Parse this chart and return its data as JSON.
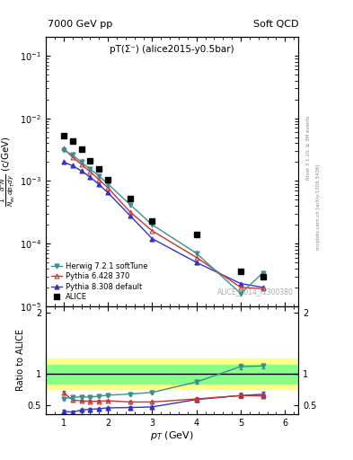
{
  "title_left": "7000 GeV pp",
  "title_right": "Soft QCD",
  "annotation": "pT(Σ⁻) (alice2015-y0.5bar)",
  "watermark": "ALICE_2014_I1300380",
  "ylabel_main_line1": "1    d²N  (c/GeV)",
  "ylabel_main_line2": "N_ev dp_Tdy",
  "ylabel_ratio": "Ratio to ALICE",
  "xlabel": "p_T (GeV)",
  "rivet_label": "Rivet 3.1.10, ≥ 3M events",
  "arxiv_label": "mcplots.cern.ch [arXiv:1306.3436]",
  "alice_x": [
    1.0,
    1.2,
    1.4,
    1.6,
    1.8,
    2.0,
    2.5,
    3.0,
    4.0,
    5.0,
    5.5
  ],
  "alice_y": [
    0.0052,
    0.0043,
    0.0032,
    0.0021,
    0.00155,
    0.00105,
    0.00052,
    0.00023,
    0.00014,
    3.6e-05,
    3e-05
  ],
  "herwig_x": [
    1.0,
    1.2,
    1.4,
    1.6,
    1.8,
    2.0,
    2.5,
    3.0,
    4.0,
    5.0,
    5.5
  ],
  "herwig_y": [
    0.0031,
    0.0026,
    0.002,
    0.00155,
    0.0012,
    0.0009,
    0.00042,
    0.0002,
    7e-05,
    1.6e-05,
    3.4e-05
  ],
  "pythia6_x": [
    1.0,
    1.2,
    1.4,
    1.6,
    1.8,
    2.0,
    2.5,
    3.0,
    4.0,
    5.0,
    5.5
  ],
  "pythia6_y": [
    0.0033,
    0.0024,
    0.00185,
    0.0014,
    0.00105,
    0.00078,
    0.00032,
    0.00016,
    6e-05,
    2e-05,
    1.9e-05
  ],
  "pythia8_x": [
    1.0,
    1.2,
    1.4,
    1.6,
    1.8,
    2.0,
    2.5,
    3.0,
    4.0,
    5.0,
    5.5
  ],
  "pythia8_y": [
    0.002,
    0.00175,
    0.00145,
    0.00115,
    0.00088,
    0.00065,
    0.00028,
    0.00012,
    5e-05,
    2.3e-05,
    2e-05
  ],
  "herwig_ratio": [
    0.6,
    0.62,
    0.63,
    0.625,
    0.64,
    0.655,
    0.675,
    0.7,
    0.87,
    1.12,
    1.13
  ],
  "herwig_ratio_err": [
    0.02,
    0.02,
    0.02,
    0.02,
    0.02,
    0.02,
    0.02,
    0.02,
    0.03,
    0.04,
    0.04
  ],
  "pythia6_ratio": [
    0.7,
    0.575,
    0.565,
    0.555,
    0.555,
    0.565,
    0.545,
    0.545,
    0.595,
    0.65,
    0.645
  ],
  "pythia6_ratio_err": [
    0.03,
    0.02,
    0.02,
    0.02,
    0.02,
    0.02,
    0.02,
    0.02,
    0.03,
    0.04,
    0.04
  ],
  "pythia8_ratio": [
    0.395,
    0.38,
    0.415,
    0.425,
    0.435,
    0.45,
    0.455,
    0.465,
    0.585,
    0.65,
    0.67
  ],
  "pythia8_ratio_err": [
    0.025,
    0.02,
    0.02,
    0.02,
    0.02,
    0.02,
    0.02,
    0.02,
    0.03,
    0.035,
    0.04
  ],
  "herwig_color": "#3d8f8f",
  "pythia6_color": "#cc3333",
  "pythia8_color": "#3333cc",
  "alice_color": "#000000",
  "band_green_lo": 0.85,
  "band_green_hi": 1.15,
  "band_yellow_lo": 0.75,
  "band_yellow_hi": 1.25,
  "ylim_main": [
    1e-05,
    0.2
  ],
  "ylim_ratio": [
    0.35,
    2.1
  ],
  "ratio_yticks": [
    0.5,
    1.0,
    2.0
  ],
  "xlim": [
    0.6,
    6.3
  ]
}
